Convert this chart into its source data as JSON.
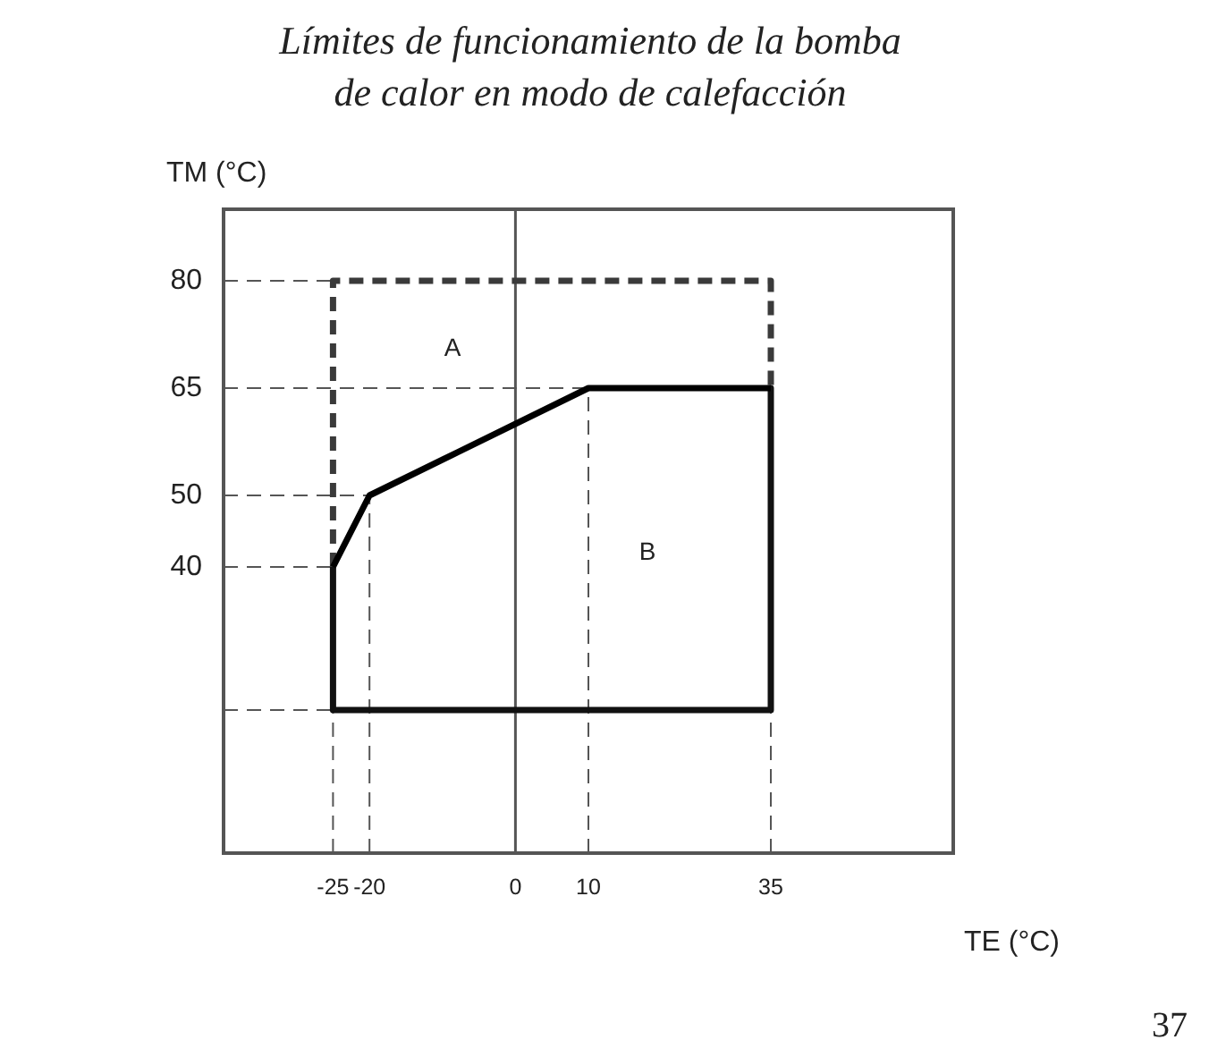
{
  "chart_data": {
    "type": "line",
    "title": "Límites de funcionamiento de la bomba de calor en modo de calefacción",
    "xlabel": "TE (°C)",
    "ylabel": "TM (°C)",
    "xlim": [
      -40,
      60
    ],
    "ylim": [
      0,
      90
    ],
    "xticks": [
      -25,
      -20,
      0,
      10,
      35
    ],
    "yticks": [
      40,
      50,
      65,
      80
    ],
    "grid": false,
    "marker": "none",
    "series": [
      {
        "color": "#000000",
        "line_style": "solid",
        "x": [
          -25,
          -20,
          10,
          35
        ],
        "values": [
          40,
          50,
          65,
          65
        ]
      },
      {
        "color": "#111111",
        "line_style": "solid",
        "x": [
          35,
          35,
          -25,
          -25
        ],
        "values": [
          65,
          20,
          20,
          40
        ]
      },
      {
        "color": "#3a3a3a",
        "line_style": "dashed",
        "x": [
          -25,
          -25,
          35,
          35
        ],
        "values": [
          40,
          80,
          80,
          65
        ]
      }
    ],
    "ref_lines": [
      {
        "axis": "x",
        "value": 0,
        "line_style": "solid"
      },
      {
        "axis": "x",
        "value": -25,
        "line_style": "dashed"
      },
      {
        "axis": "x",
        "value": -20,
        "line_style": "dashed"
      },
      {
        "axis": "x",
        "value": 10,
        "line_style": "dashed"
      },
      {
        "axis": "x",
        "value": 35,
        "line_style": "dashed"
      },
      {
        "axis": "y",
        "value": 80,
        "line_style": "dashed"
      },
      {
        "axis": "y",
        "value": 65,
        "line_style": "dashed"
      },
      {
        "axis": "y",
        "value": 50,
        "line_style": "dashed"
      },
      {
        "axis": "y",
        "value": 40,
        "line_style": "dashed"
      },
      {
        "axis": "y",
        "value": 20,
        "line_style": "dashed"
      }
    ],
    "annotations": [
      "A",
      "B",
      "37"
    ]
  }
}
